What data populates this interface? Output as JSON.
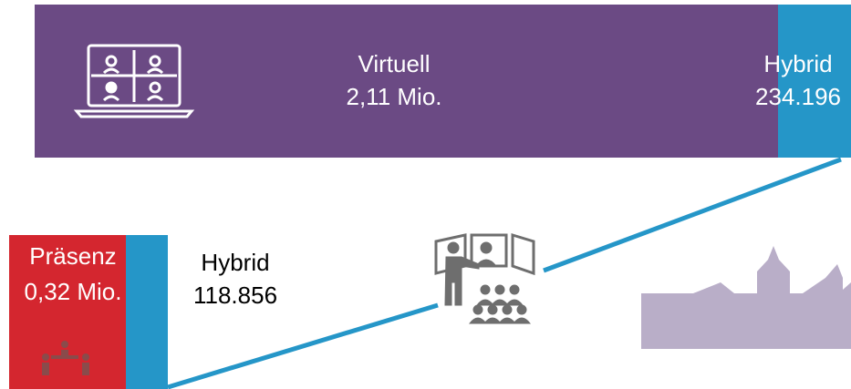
{
  "virtual": {
    "label": "Virtuell",
    "value": "2,11 Mio."
  },
  "virtual_hybrid": {
    "label": "Hybrid",
    "value": "234.196"
  },
  "presence": {
    "label": "Präsenz",
    "value": "0,32 Mio."
  },
  "presence_hybrid": {
    "label": "Hybrid",
    "value": "118.856"
  }
}
